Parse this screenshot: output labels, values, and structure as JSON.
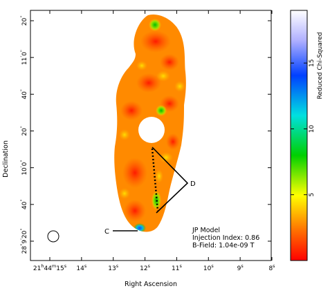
{
  "chart_data": {
    "type": "heatmap",
    "colormap": [
      "#ff0000",
      "#ff8000",
      "#ffff00",
      "#00cc00",
      "#00e5e5",
      "#0033ff",
      "#ccccff",
      "#ffffff"
    ],
    "xlabel": "Right Ascension",
    "ylabel": "Declination",
    "x_ticks": [
      {
        "h": "21",
        "h_unit": "h",
        "m": "44",
        "m_unit": "m",
        "s": "15",
        "s_unit": "s"
      },
      {
        "s": "14",
        "s_unit": "s"
      },
      {
        "s": "13",
        "s_unit": "s"
      },
      {
        "s": "12",
        "s_unit": "s"
      },
      {
        "s": "11",
        "s_unit": "s"
      },
      {
        "s": "10",
        "s_unit": "s"
      },
      {
        "s": "9",
        "s_unit": "s"
      },
      {
        "s": "8",
        "s_unit": "s"
      }
    ],
    "y_ticks": [
      {
        "deg": "",
        "arcmin": "",
        "arcsec": "20",
        "arcsec_unit": "\""
      },
      {
        "deg": "",
        "arcmin": "11",
        "arcmin_unit": "'",
        "arcsec": "0",
        "arcsec_unit": "\""
      },
      {
        "deg": "",
        "arcmin": "",
        "arcsec": "40",
        "arcsec_unit": "\""
      },
      {
        "deg": "",
        "arcmin": "",
        "arcsec": "20",
        "arcsec_unit": "\""
      },
      {
        "deg": "",
        "arcmin": "10",
        "arcmin_unit": "'",
        "arcsec": "0",
        "arcsec_unit": "\""
      },
      {
        "deg": "",
        "arcmin": "",
        "arcsec": "40",
        "arcsec_unit": "\""
      },
      {
        "deg": "28",
        "deg_unit": "°",
        "arcmin": "9",
        "arcmin_unit": "'",
        "arcsec": "20",
        "arcsec_unit": "\""
      }
    ],
    "colorbar": {
      "label": "Reduced Chi-Squared",
      "ticks": [
        5,
        10,
        15
      ],
      "range": [
        0,
        19
      ]
    },
    "annotations": [
      {
        "label": "C"
      },
      {
        "label": "D"
      }
    ],
    "info": {
      "line1": "JP Model",
      "line2": "Injection Index: 0.86",
      "line3": "B-Field: 1.04e-09 T"
    }
  }
}
